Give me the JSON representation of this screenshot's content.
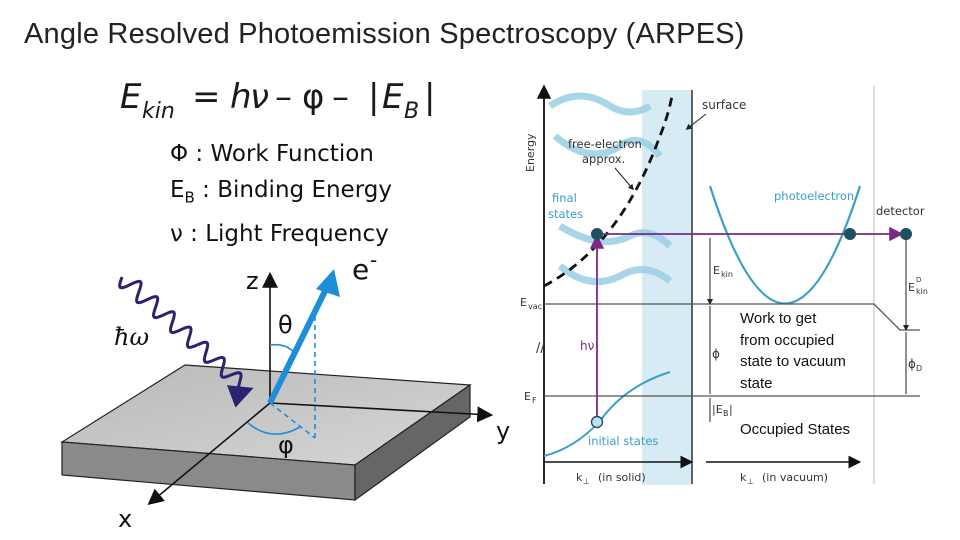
{
  "title": "Angle Resolved Photoemission Spectroscopy (ARPES)",
  "equation": {
    "lhs": "E",
    "lhs_sub": "kin",
    "equals": "=",
    "h": "h",
    "nu": "ν",
    "minus": "–",
    "phi": "φ",
    "bar_left": "|",
    "eb": "E",
    "eb_sub": "B",
    "bar_right": "|"
  },
  "definitions": {
    "phi": "Φ : Work Function",
    "eb_main": "E",
    "eb_sub": "B",
    "eb_rest": " : Binding Energy",
    "nu": "ν : Light Frequency"
  },
  "geometry_figure": {
    "hbar_omega": "ħω",
    "electron": "e",
    "electron_sup": "-",
    "theta": "θ",
    "phi": "φ",
    "axis_z": "z",
    "axis_y": "y",
    "axis_x": "x"
  },
  "energy_diagram": {
    "energy_axis": "Energy",
    "surface": "surface",
    "free_electron_1": "free-electron",
    "free_electron_2": "approx.",
    "final_states_1": "final",
    "final_states_2": "states",
    "photoelectron": "photoelectron",
    "detector": "detector",
    "ekin": "E",
    "ekin_sub": "kin",
    "evac": "E",
    "evac_sub": "vac",
    "phi_small": "ϕ",
    "ef": "E",
    "ef_sub": "F",
    "eb": "|E",
    "eb_sub": "B",
    "eb_end": "|",
    "hv": "hν",
    "break_mark": "//",
    "initial_states": "initial states",
    "ekin_d": "E",
    "ekin_d_sub": "kin",
    "ekin_d_sup": "D",
    "phi_d": "ϕ",
    "phi_d_sub": "D",
    "k_solid": "k",
    "k_solid_sub": "⊥",
    "k_solid_rest": "(in solid)",
    "k_vacuum": "k",
    "k_vacuum_sub": "⊥",
    "k_vacuum_rest": "(in vacuum)"
  },
  "notes": {
    "work_line1": "Work to get",
    "work_line2": "from occupied",
    "work_line3": "state to vacuum",
    "work_line4": "state",
    "occupied": "Occupied States"
  },
  "colors": {
    "purple": "#7a2a86",
    "teal_dot": "#1f4f63",
    "cyan": "#3a9fc7",
    "light_cyan": "#cfe7f1",
    "arrow_blue": "#1d8fd8",
    "wave": "#2a2470"
  }
}
